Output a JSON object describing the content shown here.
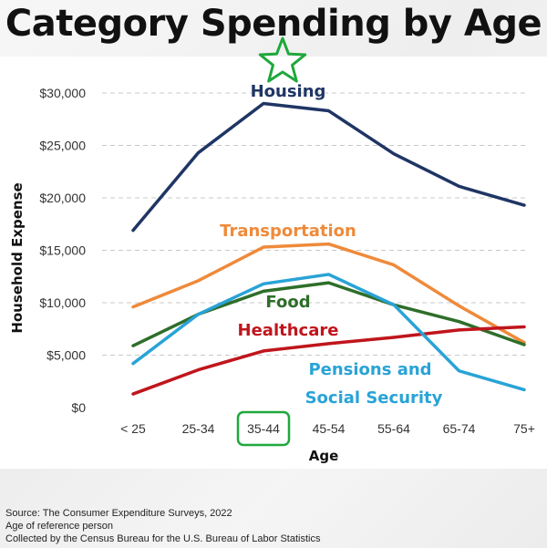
{
  "title": "Category Spending by Age",
  "chart_data": {
    "type": "line",
    "xlabel": "Age",
    "ylabel": "Household Expense",
    "categories": [
      "< 25",
      "25-34",
      "35-44",
      "45-54",
      "55-64",
      "65-74",
      "75+"
    ],
    "y_ticks": [
      "$0",
      "$5,000",
      "$10,000",
      "$15,000",
      "$20,000",
      "$25,000",
      "$30,000"
    ],
    "ylim": [
      0,
      30000
    ],
    "grid": "horizontal-dashed",
    "highlighted_category": "35-44",
    "series": [
      {
        "name": "Housing",
        "color": "#1f3564",
        "values": [
          16900,
          24300,
          29000,
          28300,
          24200,
          21100,
          19300
        ]
      },
      {
        "name": "Transportation",
        "color": "#ef8a3a",
        "values": [
          9600,
          12100,
          15300,
          15600,
          13600,
          9700,
          6200
        ]
      },
      {
        "name": "Food",
        "color": "#2e6e2a",
        "values": [
          5900,
          8900,
          11100,
          11900,
          9800,
          8200,
          6000
        ]
      },
      {
        "name": "Healthcare",
        "color": "#c0151c",
        "values": [
          1300,
          3600,
          5400,
          6100,
          6700,
          7400,
          7700
        ]
      },
      {
        "name": "Pensions and Social Security",
        "label_lines": [
          "Pensions and",
          "Social Security"
        ],
        "color": "#29a3d6",
        "values": [
          4200,
          8900,
          11800,
          12700,
          9800,
          3500,
          1700
        ]
      }
    ]
  },
  "star_color": "#1ea83c",
  "footer": {
    "source": "Source: The Consumer Expenditure Surveys, 2022",
    "note1": "Age of reference person",
    "note2": "Collected by the Census Bureau for the U.S. Bureau of Labor Statistics"
  }
}
